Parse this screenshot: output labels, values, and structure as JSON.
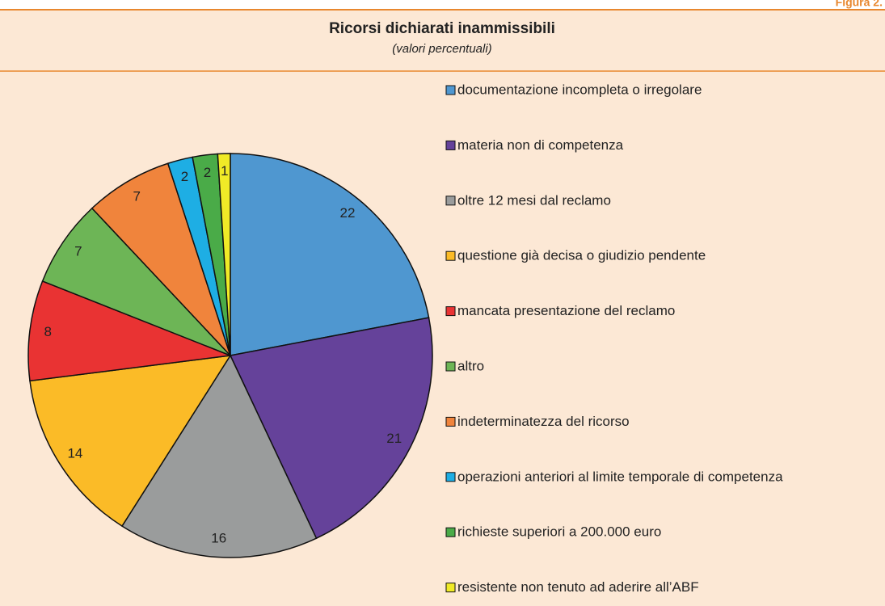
{
  "chart_data": {
    "type": "pie",
    "figure_label": "Figura 2.",
    "title": "Ricorsi dichiarati inammissibili",
    "subtitle": "(valori percentuali)",
    "categories": [
      "documentazione incompleta o irregolare",
      "materia non di competenza",
      "oltre 12 mesi dal reclamo",
      "questione già decisa o giudizio pendente",
      "mancata presentazione del reclamo",
      "altro",
      "indeterminatezza del ricorso",
      "operazioni anteriori al limite temporale di competenza",
      "richieste superiori a 200.000 euro",
      "resistente non tenuto ad aderire all’ABF"
    ],
    "values": [
      22,
      21,
      16,
      14,
      8,
      7,
      7,
      2,
      2,
      1
    ],
    "colors": [
      "#4f97d0",
      "#65429a",
      "#9a9c9c",
      "#fbbb27",
      "#e93333",
      "#6db556",
      "#f0843c",
      "#1eaee4",
      "#4aab48",
      "#f0ea27"
    ]
  }
}
